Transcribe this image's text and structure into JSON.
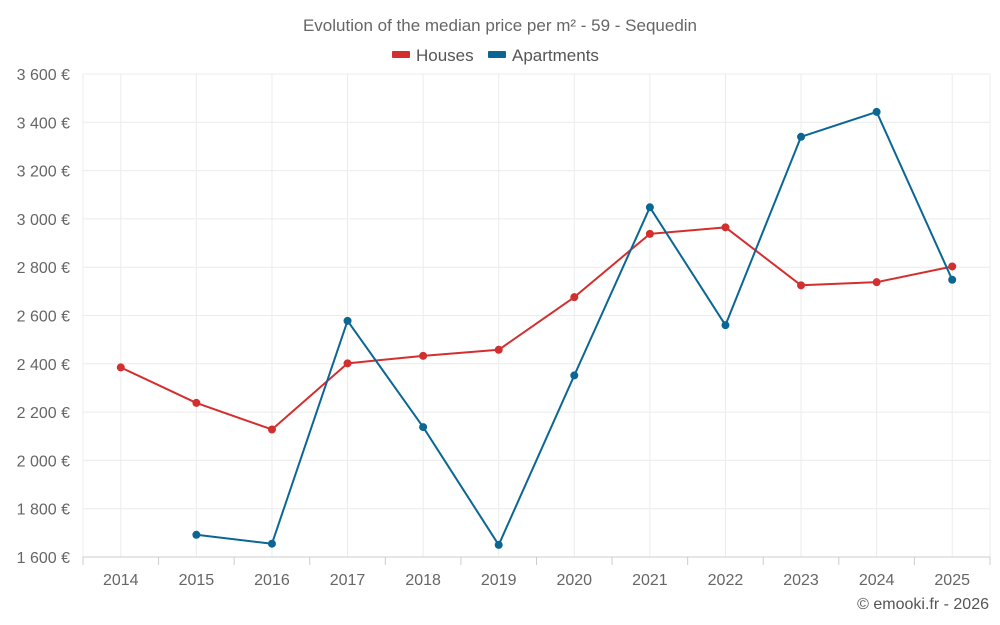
{
  "chart_data": {
    "type": "line",
    "title": "Evolution of the median price per m² - 59 - Sequedin",
    "categories": [
      "2014",
      "2015",
      "2016",
      "2017",
      "2018",
      "2019",
      "2020",
      "2021",
      "2022",
      "2023",
      "2024",
      "2025"
    ],
    "series": [
      {
        "name": "Houses",
        "color": "#d32f2f",
        "values": [
          2385,
          2238,
          2128,
          2402,
          2433,
          2458,
          2676,
          2938,
          2965,
          2725,
          2738,
          2803
        ]
      },
      {
        "name": "Apartments",
        "color": "#0b6694",
        "values": [
          null,
          1692,
          1655,
          2578,
          2138,
          1650,
          2352,
          3048,
          2560,
          3340,
          3443,
          2748
        ]
      }
    ],
    "ylim": [
      1600,
      3600
    ],
    "yticks": [
      1600,
      1800,
      2000,
      2200,
      2400,
      2600,
      2800,
      3000,
      3200,
      3400,
      3600
    ],
    "ytick_labels": [
      "1 600 €",
      "1 800 €",
      "2 000 €",
      "2 200 €",
      "2 400 €",
      "2 600 €",
      "2 800 €",
      "3 000 €",
      "3 200 €",
      "3 400 €",
      "3 600 €"
    ],
    "xlabel": "",
    "ylabel": "",
    "grid": true,
    "legend_position": "top-center"
  },
  "credit": "© emooki.fr - 2026"
}
